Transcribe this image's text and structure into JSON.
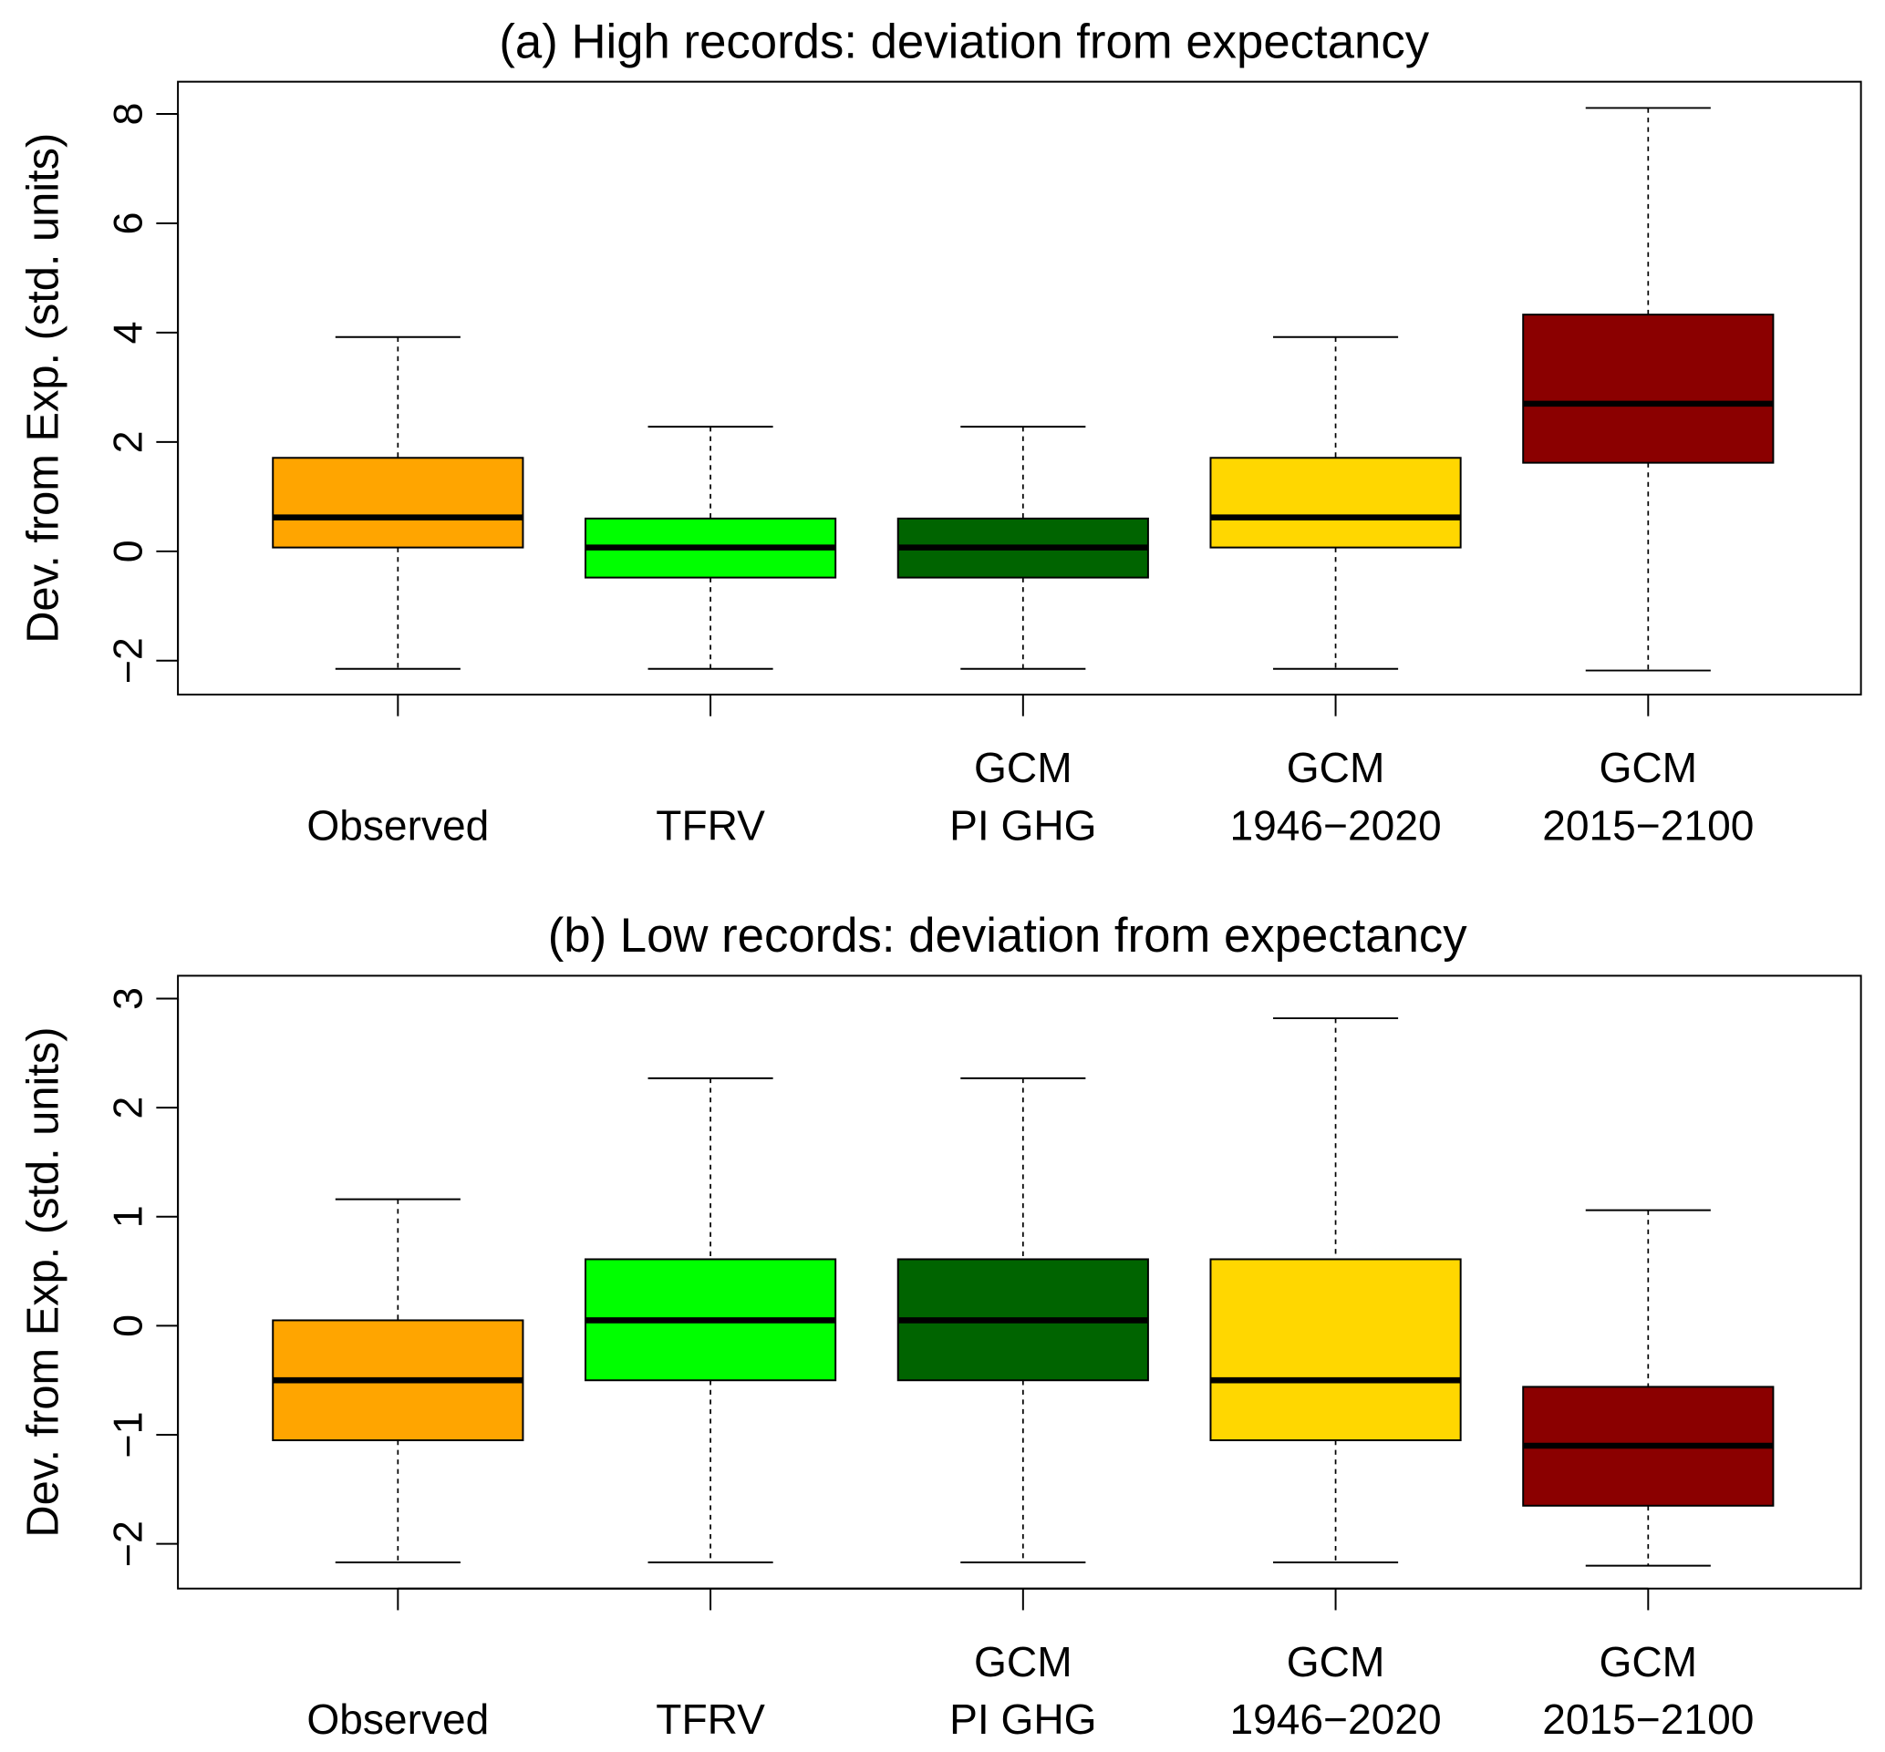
{
  "chart_data": [
    {
      "type": "box",
      "title": "(a) High records: deviation from expectancy",
      "ylabel": "Dev. from Exp. (std. units)",
      "ylim": [
        -2.62,
        8.59
      ],
      "yticks": [
        -2,
        0,
        2,
        4,
        6,
        8
      ],
      "ytick_labels": [
        "−2",
        "0",
        "2",
        "4",
        "6",
        "8"
      ],
      "categories": [
        {
          "lines": [
            "",
            "Observed"
          ]
        },
        {
          "lines": [
            "",
            "TFRV"
          ]
        },
        {
          "lines": [
            "GCM",
            "PI GHG"
          ]
        },
        {
          "lines": [
            "GCM",
            "1946−2020"
          ]
        },
        {
          "lines": [
            "GCM",
            "2015−2100"
          ]
        }
      ],
      "boxes": [
        {
          "min": -2.15,
          "q1": 0.07,
          "median": 0.62,
          "q3": 1.71,
          "max": 3.92,
          "color": "#FFA500"
        },
        {
          "min": -2.15,
          "q1": -0.48,
          "median": 0.07,
          "q3": 0.6,
          "max": 2.28,
          "color": "#00FF00"
        },
        {
          "min": -2.15,
          "q1": -0.48,
          "median": 0.07,
          "q3": 0.6,
          "max": 2.28,
          "color": "#006400"
        },
        {
          "min": -2.15,
          "q1": 0.07,
          "median": 0.62,
          "q3": 1.71,
          "max": 3.92,
          "color": "#FFD700"
        },
        {
          "min": -2.18,
          "q1": 1.62,
          "median": 2.7,
          "q3": 4.33,
          "max": 8.11,
          "color": "#8B0000"
        }
      ]
    },
    {
      "type": "box",
      "title": "(b) Low records: deviation from expectancy",
      "ylabel": "Dev. from Exp. (std. units)",
      "ylim": [
        -2.41,
        3.21
      ],
      "yticks": [
        -2,
        -1,
        0,
        1,
        2,
        3
      ],
      "ytick_labels": [
        "−2",
        "−1",
        "0",
        "1",
        "2",
        "3"
      ],
      "categories": [
        {
          "lines": [
            "",
            "Observed"
          ]
        },
        {
          "lines": [
            "",
            "TFRV"
          ]
        },
        {
          "lines": [
            "GCM",
            "PI GHG"
          ]
        },
        {
          "lines": [
            "GCM",
            "1946−2020"
          ]
        },
        {
          "lines": [
            "GCM",
            "2015−2100"
          ]
        }
      ],
      "boxes": [
        {
          "min": -2.17,
          "q1": -1.05,
          "median": -0.5,
          "q3": 0.05,
          "max": 1.16,
          "color": "#FFA500"
        },
        {
          "min": -2.17,
          "q1": -0.5,
          "median": 0.05,
          "q3": 0.61,
          "max": 2.27,
          "color": "#00FF00"
        },
        {
          "min": -2.17,
          "q1": -0.5,
          "median": 0.05,
          "q3": 0.61,
          "max": 2.27,
          "color": "#006400"
        },
        {
          "min": -2.17,
          "q1": -1.05,
          "median": -0.5,
          "q3": 0.61,
          "max": 2.82,
          "color": "#FFD700"
        },
        {
          "min": -2.2,
          "q1": -1.65,
          "median": -1.1,
          "q3": -0.56,
          "max": 1.06,
          "color": "#8B0000"
        }
      ]
    }
  ]
}
